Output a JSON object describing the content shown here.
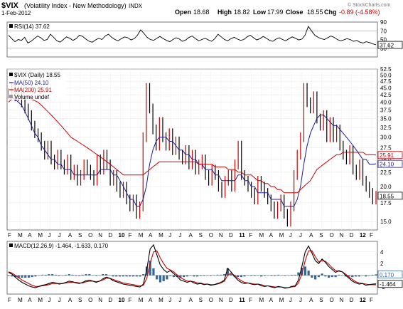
{
  "header": {
    "symbol": "$VIX",
    "name": "(Volatility Index - New Methodology)",
    "exchange": "INDX",
    "date": "1-Feb-2012",
    "open_label": "Open",
    "open": "18.68",
    "high_label": "High",
    "high": "18.82",
    "low_label": "Low",
    "low": "17.99",
    "close_label": "Close",
    "close": "18.55",
    "chg_label": "Chg",
    "chg": "-0.89 (-4.58%)",
    "watermark": "© StockCharts.com",
    "chg_color": "#cc0000"
  },
  "chart_data": [
    {
      "type": "line",
      "title": "RSI(14) 37.62",
      "ylim": [
        10,
        90
      ],
      "y_ticks": [
        30,
        50,
        70,
        90
      ],
      "reference_lines": [
        30,
        70
      ],
      "current_value": 37.62,
      "series": [
        {
          "name": "RSI(14) 37.62",
          "color": "#000000",
          "values": [
            60,
            52,
            45,
            50,
            48,
            55,
            42,
            46,
            52,
            58,
            54,
            48,
            50,
            62,
            55,
            47,
            44,
            50,
            56,
            53,
            48,
            52,
            60,
            57,
            51,
            46,
            44,
            49,
            53,
            50,
            58,
            62,
            55,
            50,
            47,
            52,
            56,
            54,
            49,
            52,
            60,
            72,
            64,
            55,
            50,
            48,
            53,
            57,
            52,
            48,
            45,
            50,
            54,
            51,
            46,
            49,
            55,
            58,
            52,
            47,
            50,
            53,
            49,
            46,
            52,
            62,
            56,
            50,
            47,
            52,
            55,
            51,
            48,
            50,
            56,
            60,
            54,
            49,
            52,
            57,
            53,
            48,
            46,
            51,
            54,
            50,
            47,
            52,
            56,
            53,
            49,
            51,
            60,
            80,
            70,
            60,
            55,
            52,
            50,
            54,
            58,
            55,
            50,
            47,
            49,
            52,
            50,
            46,
            48,
            44,
            42,
            45,
            43,
            40,
            38
          ]
        }
      ]
    },
    {
      "type": "line",
      "title": "$VIX (Daily) 18.55",
      "x_axis_labels": [
        "F",
        "M",
        "A",
        "M",
        "J",
        "J",
        "A",
        "S",
        "O",
        "N",
        "D",
        "10",
        "F",
        "M",
        "A",
        "M",
        "J",
        "J",
        "A",
        "S",
        "O",
        "N",
        "D",
        "11",
        "F",
        "M",
        "A",
        "M",
        "J",
        "J",
        "A",
        "S",
        "O",
        "N",
        "D",
        "12",
        "F"
      ],
      "ylim": [
        14,
        52.5
      ],
      "y_ticks": [
        15.0,
        17.5,
        20.0,
        22.5,
        25.0,
        27.5,
        30.0,
        32.5,
        35.0,
        37.5,
        40.0,
        42.5,
        45.0,
        47.5,
        50.0,
        52.5
      ],
      "log_scale": true,
      "legend_placement": "top-left",
      "series": [
        {
          "name": "$VIX (Daily) 18.55",
          "color": "#000000",
          "last": 18.55,
          "values": [
            43,
            45,
            42,
            44,
            40,
            38,
            36,
            33,
            31,
            30,
            28,
            26,
            28,
            25,
            24,
            26,
            24,
            23,
            25,
            22,
            23,
            21,
            22,
            24,
            23,
            22,
            21,
            25,
            23,
            26,
            24,
            21,
            22,
            20,
            19,
            20,
            18,
            17,
            18,
            16,
            17,
            30,
            45,
            38,
            32,
            28,
            34,
            30,
            28,
            31,
            27,
            29,
            26,
            25,
            27,
            24,
            26,
            23,
            24,
            25,
            22,
            21,
            23,
            22,
            20,
            19,
            21,
            22,
            20,
            24,
            28,
            22,
            21,
            20,
            19,
            18,
            21,
            20,
            19,
            18,
            17,
            16,
            17,
            18,
            16,
            15,
            17,
            22,
            26,
            30,
            45,
            40,
            38,
            42,
            35,
            33,
            36,
            30,
            34,
            30,
            32,
            28,
            26,
            25,
            27,
            23,
            22,
            24,
            21,
            20,
            19,
            18,
            18.55
          ]
        },
        {
          "name": "MA(50) 24.10",
          "color": "#1a1aa0",
          "last": 24.1,
          "values": [
            42,
            42,
            41,
            40,
            39,
            37,
            35,
            33,
            31,
            30,
            28,
            27,
            26,
            25,
            25,
            24,
            24,
            23,
            23,
            23,
            22,
            22,
            22,
            22,
            22,
            22,
            22,
            22,
            23,
            23,
            23,
            23,
            22,
            22,
            21,
            20,
            19,
            18,
            18,
            17,
            17,
            18,
            20,
            24,
            27,
            29,
            30,
            30,
            30,
            29,
            29,
            28,
            27,
            27,
            26,
            26,
            25,
            25,
            24,
            24,
            23,
            23,
            23,
            22,
            22,
            21,
            21,
            21,
            21,
            21,
            22,
            22,
            21,
            21,
            20,
            20,
            19,
            19,
            19,
            19,
            18,
            18,
            18,
            18,
            17,
            17,
            17,
            17,
            18,
            20,
            24,
            28,
            31,
            33,
            35,
            36,
            36,
            35,
            34,
            33,
            33,
            32,
            31,
            30,
            29,
            28,
            27,
            26,
            25,
            25,
            24,
            24,
            24.1
          ]
        },
        {
          "name": "MA(200) 25.91",
          "color": "#cc0000",
          "last": 25.91,
          "values": [
            40,
            41,
            41.5,
            42,
            42,
            42,
            41.5,
            41,
            40.5,
            40,
            39,
            38,
            37,
            36,
            35,
            34,
            33,
            32,
            31,
            30,
            29.5,
            29,
            28.5,
            28,
            27.5,
            27,
            26.5,
            26,
            25.5,
            25,
            24.5,
            24,
            23.5,
            23,
            22.5,
            22,
            22,
            22,
            22,
            22,
            22,
            22,
            22.5,
            23,
            23.5,
            24,
            24.5,
            24.5,
            24.5,
            24.5,
            24.5,
            24.5,
            24.5,
            24.5,
            24.5,
            24.5,
            24.5,
            24.5,
            24,
            24,
            24,
            24,
            24,
            23.5,
            23.5,
            23.5,
            23.5,
            23,
            23,
            23,
            22.5,
            22.5,
            22,
            22,
            22,
            21.5,
            21,
            21,
            20.5,
            20.5,
            20,
            20,
            19.5,
            19.5,
            19,
            19,
            19,
            19,
            19,
            19.5,
            20,
            20.5,
            21,
            22,
            23,
            23.5,
            24,
            24.5,
            25,
            25.5,
            26,
            26,
            26.5,
            26.5,
            26.5,
            26.5,
            26.5,
            26.5,
            26.5,
            26,
            26,
            26,
            25.91
          ]
        }
      ],
      "volume_label": "Volume undef",
      "price_labels": [
        {
          "text": "25.91",
          "color": "#cc0000",
          "value": 25.91
        },
        {
          "text": "24.10",
          "color": "#1a1aa0",
          "value": 24.1
        },
        {
          "text": "18.55",
          "color": "#000000",
          "value": 18.55
        }
      ]
    },
    {
      "type": "line",
      "title": "MACD(12,26,9) -1.464, -1.633, 0.170",
      "ylim": [
        -3.2,
        5.8
      ],
      "y_ticks": [
        -2,
        0,
        2,
        4
      ],
      "series": [
        {
          "name": "MACD(12,26,9)",
          "color": "#000000",
          "last": -1.464,
          "values": [
            0.5,
            0.2,
            -0.3,
            -0.8,
            -1.2,
            -1.5,
            -1.8,
            -2.0,
            -2.1,
            -1.9,
            -1.7,
            -1.6,
            -1.4,
            -1.2,
            -1.3,
            -1.5,
            -1.4,
            -1.2,
            -1.0,
            -1.1,
            -1.3,
            -1.4,
            -1.2,
            -0.9,
            -0.8,
            -1.0,
            -1.2,
            -1.0,
            -0.6,
            -0.3,
            -0.5,
            -0.9,
            -1.1,
            -1.3,
            -1.5,
            -1.6,
            -1.7,
            -1.8,
            -1.9,
            -2.0,
            -1.5,
            1.0,
            4.5,
            5.2,
            3.5,
            1.8,
            1.0,
            0.5,
            0.8,
            0.3,
            -0.2,
            -0.8,
            -1.0,
            -1.2,
            -1.0,
            -1.3,
            -1.5,
            -1.4,
            -1.6,
            -1.5,
            -1.7,
            -1.6,
            -1.4,
            -1.2,
            -0.8,
            1.2,
            0.6,
            -0.2,
            -0.8,
            -1.2,
            -1.4,
            -1.3,
            -1.5,
            -1.6,
            -1.5,
            -1.8,
            -1.9,
            -1.8,
            -2.0,
            -2.1,
            -1.9,
            -2.0,
            -2.2,
            -2.1,
            -1.9,
            -1.8,
            -0.8,
            1.5,
            4.0,
            5.0,
            3.8,
            2.5,
            2.0,
            2.8,
            2.2,
            1.5,
            1.0,
            0.5,
            0.8,
            0.6,
            0.0,
            -0.5,
            -1.0,
            -1.3,
            -1.5,
            -1.4,
            -1.7,
            -1.6,
            -1.5,
            -1.464
          ]
        },
        {
          "name": "Signal",
          "color": "#cc0000",
          "last": -1.633,
          "values": [
            0.6,
            0.4,
            0.0,
            -0.4,
            -0.8,
            -1.1,
            -1.4,
            -1.7,
            -1.9,
            -1.9,
            -1.8,
            -1.7,
            -1.6,
            -1.4,
            -1.4,
            -1.4,
            -1.4,
            -1.3,
            -1.2,
            -1.2,
            -1.2,
            -1.3,
            -1.3,
            -1.1,
            -1.0,
            -1.0,
            -1.1,
            -1.0,
            -0.8,
            -0.5,
            -0.5,
            -0.7,
            -0.9,
            -1.1,
            -1.3,
            -1.4,
            -1.5,
            -1.6,
            -1.7,
            -1.8,
            -1.7,
            -0.5,
            2.0,
            4.0,
            4.2,
            3.0,
            2.0,
            1.2,
            0.9,
            0.6,
            0.1,
            -0.4,
            -0.7,
            -1.0,
            -1.0,
            -1.1,
            -1.3,
            -1.3,
            -1.5,
            -1.5,
            -1.6,
            -1.6,
            -1.5,
            -1.3,
            -1.0,
            0.0,
            0.4,
            0.0,
            -0.5,
            -0.9,
            -1.2,
            -1.3,
            -1.4,
            -1.5,
            -1.5,
            -1.6,
            -1.8,
            -1.8,
            -1.9,
            -2.0,
            -2.0,
            -2.0,
            -2.1,
            -2.1,
            -2.0,
            -1.9,
            -1.3,
            0.2,
            2.5,
            4.2,
            4.2,
            3.2,
            2.3,
            2.5,
            2.4,
            1.9,
            1.3,
            0.8,
            0.7,
            0.6,
            0.2,
            -0.3,
            -0.7,
            -1.1,
            -1.3,
            -1.4,
            -1.5,
            -1.6,
            -1.6,
            -1.633
          ]
        },
        {
          "name": "Histogram",
          "color": "#336699",
          "last": 0.17,
          "values": [
            -0.1,
            -0.2,
            -0.3,
            -0.4,
            -0.4,
            -0.4,
            -0.4,
            -0.3,
            -0.2,
            0.0,
            0.1,
            0.1,
            0.2,
            0.2,
            0.1,
            -0.1,
            0.0,
            0.1,
            0.2,
            0.1,
            -0.1,
            -0.1,
            0.1,
            0.2,
            0.2,
            0.0,
            -0.1,
            0.0,
            0.2,
            0.2,
            0.0,
            -0.2,
            -0.2,
            -0.2,
            -0.2,
            -0.2,
            -0.2,
            -0.2,
            -0.2,
            -0.2,
            0.2,
            1.5,
            2.5,
            1.2,
            -0.7,
            -1.2,
            -1.0,
            -0.7,
            -0.1,
            -0.3,
            -0.3,
            -0.4,
            -0.3,
            -0.2,
            0.0,
            -0.2,
            -0.2,
            -0.1,
            -0.1,
            0.0,
            -0.1,
            0.0,
            0.1,
            0.1,
            0.2,
            1.2,
            0.2,
            -0.2,
            -0.3,
            -0.3,
            -0.2,
            0.0,
            -0.1,
            -0.1,
            0.0,
            -0.2,
            -0.1,
            0.0,
            -0.1,
            -0.1,
            0.1,
            0.0,
            -0.1,
            0.0,
            0.1,
            0.1,
            0.5,
            1.3,
            1.5,
            0.8,
            -0.4,
            -0.7,
            -0.3,
            0.3,
            -0.2,
            -0.4,
            -0.3,
            -0.3,
            0.1,
            0.0,
            -0.2,
            -0.2,
            -0.3,
            -0.2,
            -0.2,
            0.0,
            -0.2,
            0.0,
            0.1,
            0.17
          ]
        }
      ],
      "price_labels": [
        {
          "text": "0.170",
          "color": "#336699",
          "value": 0.17
        },
        {
          "text": "-1.464",
          "color": "#000000",
          "value": -1.464
        }
      ]
    }
  ]
}
